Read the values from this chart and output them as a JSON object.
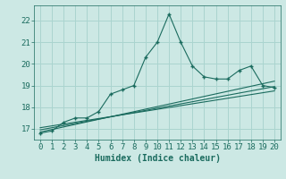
{
  "xlabel": "Humidex (Indice chaleur)",
  "ylabel": "",
  "bg_color": "#cce8e4",
  "grid_color": "#aad4cf",
  "line_color": "#1a6b5e",
  "main_x": [
    0,
    1,
    2,
    3,
    4,
    5,
    6,
    7,
    8,
    9,
    10,
    11,
    12,
    13,
    14,
    15,
    16,
    17,
    18,
    19,
    20
  ],
  "main_y": [
    16.8,
    16.9,
    17.3,
    17.5,
    17.5,
    17.8,
    18.6,
    18.8,
    19.0,
    20.3,
    21.0,
    22.3,
    21.0,
    19.9,
    19.4,
    19.3,
    19.3,
    19.7,
    19.9,
    19.0,
    18.9
  ],
  "line2_x": [
    0,
    20
  ],
  "line2_y": [
    16.85,
    19.2
  ],
  "line3_x": [
    0,
    20
  ],
  "line3_y": [
    16.95,
    18.95
  ],
  "line4_x": [
    0,
    20
  ],
  "line4_y": [
    17.05,
    18.75
  ],
  "ylim": [
    16.5,
    22.7
  ],
  "xlim": [
    -0.5,
    20.5
  ],
  "yticks": [
    17,
    18,
    19,
    20,
    21,
    22
  ],
  "xticks": [
    0,
    1,
    2,
    3,
    4,
    5,
    6,
    7,
    8,
    9,
    10,
    11,
    12,
    13,
    14,
    15,
    16,
    17,
    18,
    19,
    20
  ],
  "tick_color": "#1a6b5e",
  "label_fontsize": 7,
  "tick_fontsize": 6.5
}
